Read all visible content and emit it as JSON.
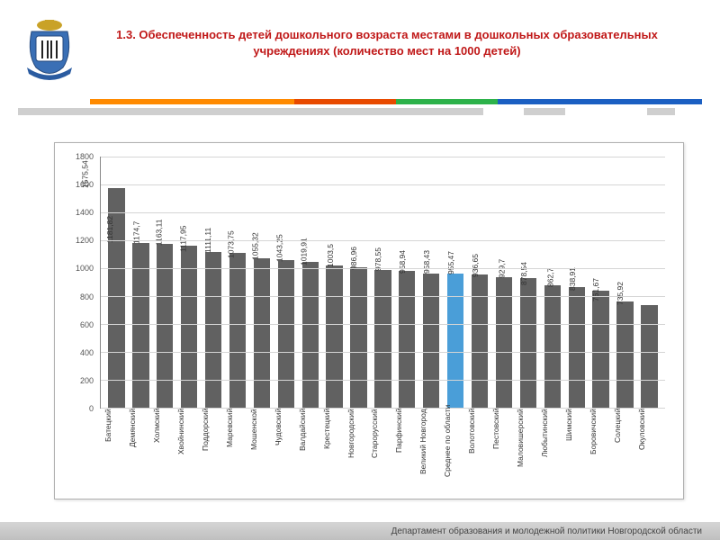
{
  "title": "1.3. Обеспеченность детей дошкольного возраста местами в дошкольных образовательных учреждениях (количество мест на 1000 детей)",
  "footer": "Департамент образования и молодежной политики Новгородской области",
  "emblem_colors": {
    "crown": "#c9a227",
    "shield": "#3a6fb5",
    "ribbon": "#2a5ba0",
    "figures": "#222"
  },
  "stripe_colors": [
    "#ff8a00",
    "#ff8a00",
    "#e84a00",
    "#2db24a",
    "#1b5fc2",
    "#1b5fc2"
  ],
  "grey_stripe": {
    "segments": [
      {
        "w": 68,
        "c": "#cfcfcf"
      },
      {
        "w": 6,
        "c": "#ffffff"
      },
      {
        "w": 6,
        "c": "#cfcfcf"
      },
      {
        "w": 12,
        "c": "#ffffff"
      },
      {
        "w": 4,
        "c": "#cfcfcf"
      }
    ]
  },
  "chart": {
    "type": "bar",
    "ylim": [
      0,
      1800
    ],
    "ytick_step": 200,
    "yticks": [
      0,
      200,
      400,
      600,
      800,
      1000,
      1200,
      1400,
      1600,
      1800
    ],
    "grid_color": "#d5d5d5",
    "axis_color": "#888888",
    "bar_color": "#616161",
    "highlight_color": "#4a9ed8",
    "background": "#ffffff",
    "label_fontsize": 8.5,
    "value_fontsize": 8.5,
    "bar_width_ratio": 0.68,
    "data": [
      {
        "label": "Батецкий",
        "value": 1575.54,
        "highlight": false
      },
      {
        "label": "Демянский",
        "value": 1181.82,
        "highlight": false
      },
      {
        "label": "Холмский",
        "value": 1174.7,
        "highlight": false
      },
      {
        "label": "Хвойнинский",
        "value": 1163.11,
        "highlight": false
      },
      {
        "label": "Поддорский",
        "value": 1117.95,
        "highlight": false
      },
      {
        "label": "Маревский",
        "value": 1111.11,
        "highlight": false
      },
      {
        "label": "Мошенской",
        "value": 1073.75,
        "highlight": false
      },
      {
        "label": "Чудовский",
        "value": 1055.32,
        "highlight": false
      },
      {
        "label": "Валдайский",
        "value": 1043.25,
        "highlight": false
      },
      {
        "label": "Крестецкий",
        "value": 1019.91,
        "highlight": false
      },
      {
        "label": "Новгородский",
        "value": 1003.5,
        "highlight": false
      },
      {
        "label": "Старорусский",
        "value": 986.96,
        "highlight": false
      },
      {
        "label": "Парфинский",
        "value": 978.55,
        "highlight": false
      },
      {
        "label": "Великий Новгород",
        "value": 958.94,
        "highlight": false
      },
      {
        "label": "Среднее по области",
        "value": 958.43,
        "highlight": true
      },
      {
        "label": "Волотовский",
        "value": 955.47,
        "highlight": false
      },
      {
        "label": "Пестовский",
        "value": 936.65,
        "highlight": false
      },
      {
        "label": "Маловишерский",
        "value": 929.7,
        "highlight": false
      },
      {
        "label": "Любытинский",
        "value": 878.54,
        "highlight": false
      },
      {
        "label": "Шимский",
        "value": 862.7,
        "highlight": false
      },
      {
        "label": "Боровичский",
        "value": 838.91,
        "highlight": false
      },
      {
        "label": "Солецкий",
        "value": 761.67,
        "highlight": false
      },
      {
        "label": "Окуловский",
        "value": 735.92,
        "highlight": false
      }
    ]
  }
}
